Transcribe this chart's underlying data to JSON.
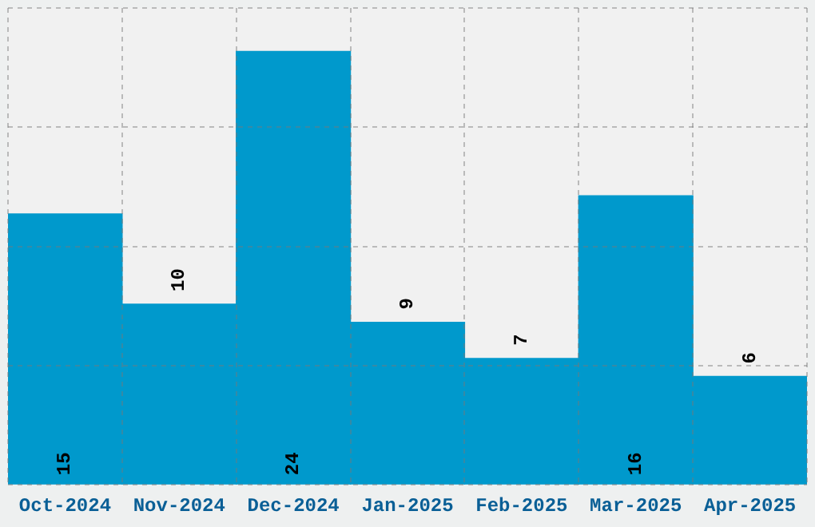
{
  "chart_data": {
    "type": "bar",
    "categories": [
      "Oct-2024",
      "Nov-2024",
      "Dec-2024",
      "Jan-2025",
      "Feb-2025",
      "Mar-2025",
      "Apr-2025"
    ],
    "values": [
      15,
      10,
      24,
      9,
      7,
      16,
      6
    ],
    "color": "#0099cc",
    "ylim": [
      0,
      26.4
    ],
    "yticks": [
      {
        "value": 0,
        "label": null
      },
      {
        "value": 6.6,
        "label": null
      },
      {
        "value": 13.2,
        "label": null
      },
      {
        "value": 19.8,
        "label": null
      },
      {
        "value": 26.4,
        "label": null
      }
    ],
    "tick_labels": "x",
    "grid": true,
    "data_labels": true,
    "legend": false
  }
}
